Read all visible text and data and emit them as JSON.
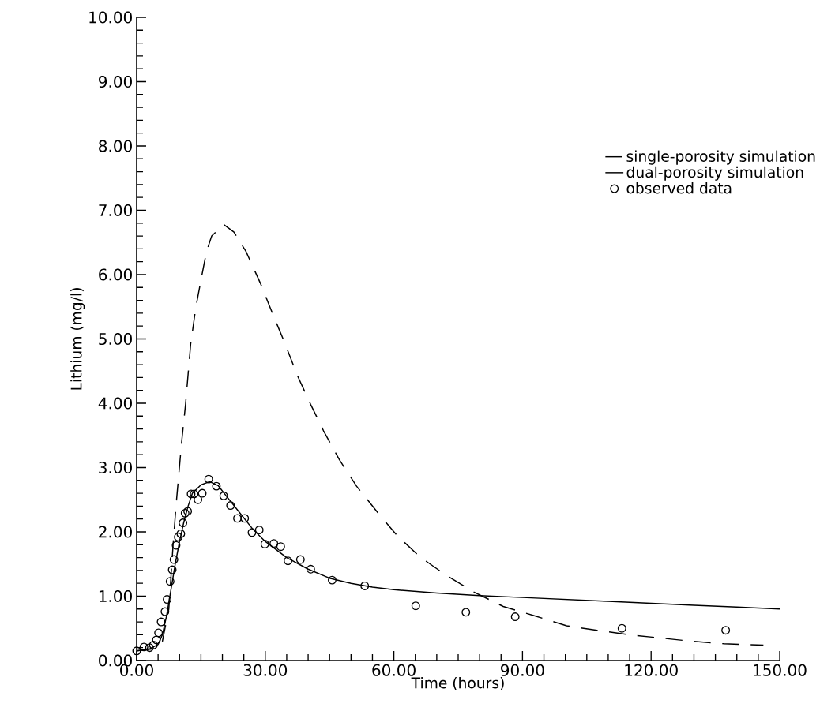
{
  "chart_data": {
    "type": "line",
    "xlabel": "Time (hours)",
    "ylabel": "Lithium (mg/l)",
    "xlim": [
      0,
      150
    ],
    "ylim": [
      0,
      10
    ],
    "xticks": [
      {
        "value": 0,
        "label": "0.00"
      },
      {
        "value": 30,
        "label": "30.00"
      },
      {
        "value": 60,
        "label": "60.00"
      },
      {
        "value": 90,
        "label": "90.00"
      },
      {
        "value": 120,
        "label": "120.00"
      },
      {
        "value": 150,
        "label": "150.00"
      }
    ],
    "yticks": [
      {
        "value": 0,
        "label": "0.00"
      },
      {
        "value": 1,
        "label": "1.00"
      },
      {
        "value": 2,
        "label": "2.00"
      },
      {
        "value": 3,
        "label": "3.00"
      },
      {
        "value": 4,
        "label": "4.00"
      },
      {
        "value": 5,
        "label": "5.00"
      },
      {
        "value": 6,
        "label": "6.00"
      },
      {
        "value": 7,
        "label": "7.00"
      },
      {
        "value": 8,
        "label": "8.00"
      },
      {
        "value": 9,
        "label": "9.00"
      },
      {
        "value": 10,
        "label": "10.00"
      }
    ],
    "legend": "top right",
    "grid": false,
    "series": [
      {
        "name": "single-porosity simulation",
        "line_style": "dashed",
        "marker": "none",
        "color": "#000000",
        "x": [
          0,
          4,
          6,
          7.5,
          8.5,
          9.2,
          10.5,
          11.4,
          12.6,
          13.8,
          15.1,
          16.3,
          17.5,
          20.3,
          22.7,
          25.5,
          28.9,
          31.6,
          34.4,
          37.5,
          40.6,
          43.6,
          47.3,
          51.3,
          56.6,
          60.8,
          66.1,
          72.1,
          78.5,
          85.5,
          92.6,
          100.3,
          107.4,
          114.8,
          122.2,
          129.3,
          137.0,
          146.2
        ],
        "values": [
          0.15,
          0.18,
          0.3,
          0.8,
          1.8,
          2.42,
          3.4,
          3.98,
          4.92,
          5.49,
          5.95,
          6.36,
          6.6,
          6.78,
          6.66,
          6.36,
          5.86,
          5.41,
          4.96,
          4.43,
          3.98,
          3.57,
          3.12,
          2.71,
          2.27,
          1.94,
          1.61,
          1.33,
          1.07,
          0.84,
          0.7,
          0.54,
          0.47,
          0.4,
          0.35,
          0.3,
          0.26,
          0.24
        ]
      },
      {
        "name": "dual-porosity simulation",
        "line_style": "solid",
        "marker": "none",
        "color": "#000000",
        "x": [
          0,
          3,
          5,
          6,
          7,
          8,
          9,
          10,
          11,
          12,
          13,
          15,
          17,
          19,
          21,
          24,
          27,
          30,
          35,
          40,
          45,
          50,
          55,
          60,
          70,
          80,
          90,
          100,
          110,
          120,
          130,
          140,
          150
        ],
        "values": [
          0.15,
          0.18,
          0.25,
          0.4,
          0.7,
          1.1,
          1.5,
          1.85,
          2.15,
          2.4,
          2.6,
          2.73,
          2.78,
          2.72,
          2.55,
          2.3,
          2.05,
          1.85,
          1.6,
          1.42,
          1.28,
          1.2,
          1.14,
          1.1,
          1.05,
          1.01,
          0.98,
          0.95,
          0.92,
          0.89,
          0.86,
          0.83,
          0.8
        ]
      },
      {
        "name": "observed data",
        "type": "scatter",
        "marker": "circle",
        "color": "#000000",
        "x": [
          0,
          1.7,
          3.0,
          3.9,
          4.6,
          5.1,
          5.7,
          6.6,
          7.1,
          7.8,
          8.3,
          8.7,
          9.2,
          9.7,
          10.3,
          10.8,
          11.3,
          11.9,
          12.7,
          13.4,
          14.3,
          15.3,
          16.8,
          18.6,
          20.3,
          21.9,
          23.5,
          25.2,
          26.9,
          28.6,
          29.9,
          32.0,
          33.6,
          35.3,
          38.2,
          40.6,
          45.6,
          53.2,
          65.1,
          76.8,
          88.3,
          113.2,
          137.4
        ],
        "values": [
          0.15,
          0.21,
          0.2,
          0.24,
          0.32,
          0.43,
          0.6,
          0.76,
          0.95,
          1.23,
          1.41,
          1.57,
          1.79,
          1.92,
          1.97,
          2.14,
          2.29,
          2.32,
          2.59,
          2.59,
          2.5,
          2.6,
          2.82,
          2.71,
          2.56,
          2.41,
          2.21,
          2.21,
          1.99,
          2.03,
          1.81,
          1.82,
          1.77,
          1.55,
          1.57,
          1.42,
          1.25,
          1.16,
          0.85,
          0.75,
          0.68,
          0.5,
          0.47
        ]
      }
    ]
  }
}
